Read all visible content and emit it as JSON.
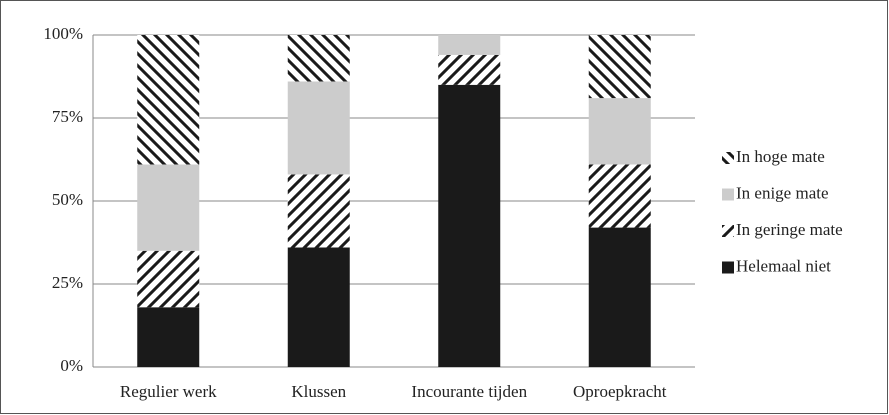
{
  "chart_data": {
    "type": "stacked-bar",
    "categories": [
      "Regulier werk",
      "Klussen",
      "Incourante tijden",
      "Oproepkracht"
    ],
    "series": [
      {
        "name": "Helemaal niet",
        "color": "#1a1a1a",
        "pattern": "solid",
        "values": [
          18,
          36,
          85,
          42
        ]
      },
      {
        "name": "In geringe mate",
        "color": "#1a1a1a",
        "pattern": "hatch-forward",
        "values": [
          17,
          22,
          9,
          19
        ]
      },
      {
        "name": "In enige mate",
        "color": "#cccccc",
        "pattern": "solid",
        "values": [
          26,
          28,
          6,
          20
        ]
      },
      {
        "name": "In hoge mate",
        "color": "#1a1a1a",
        "pattern": "hatch-back",
        "values": [
          39,
          14,
          0,
          19
        ]
      }
    ],
    "ylim": [
      0,
      100
    ],
    "yticks": [
      {
        "value": 0,
        "label": "0%"
      },
      {
        "value": 25,
        "label": "25%"
      },
      {
        "value": 50,
        "label": "50%"
      },
      {
        "value": 75,
        "label": "75%"
      },
      {
        "value": 100,
        "label": "100%"
      }
    ],
    "grid": true,
    "legend": "right"
  }
}
